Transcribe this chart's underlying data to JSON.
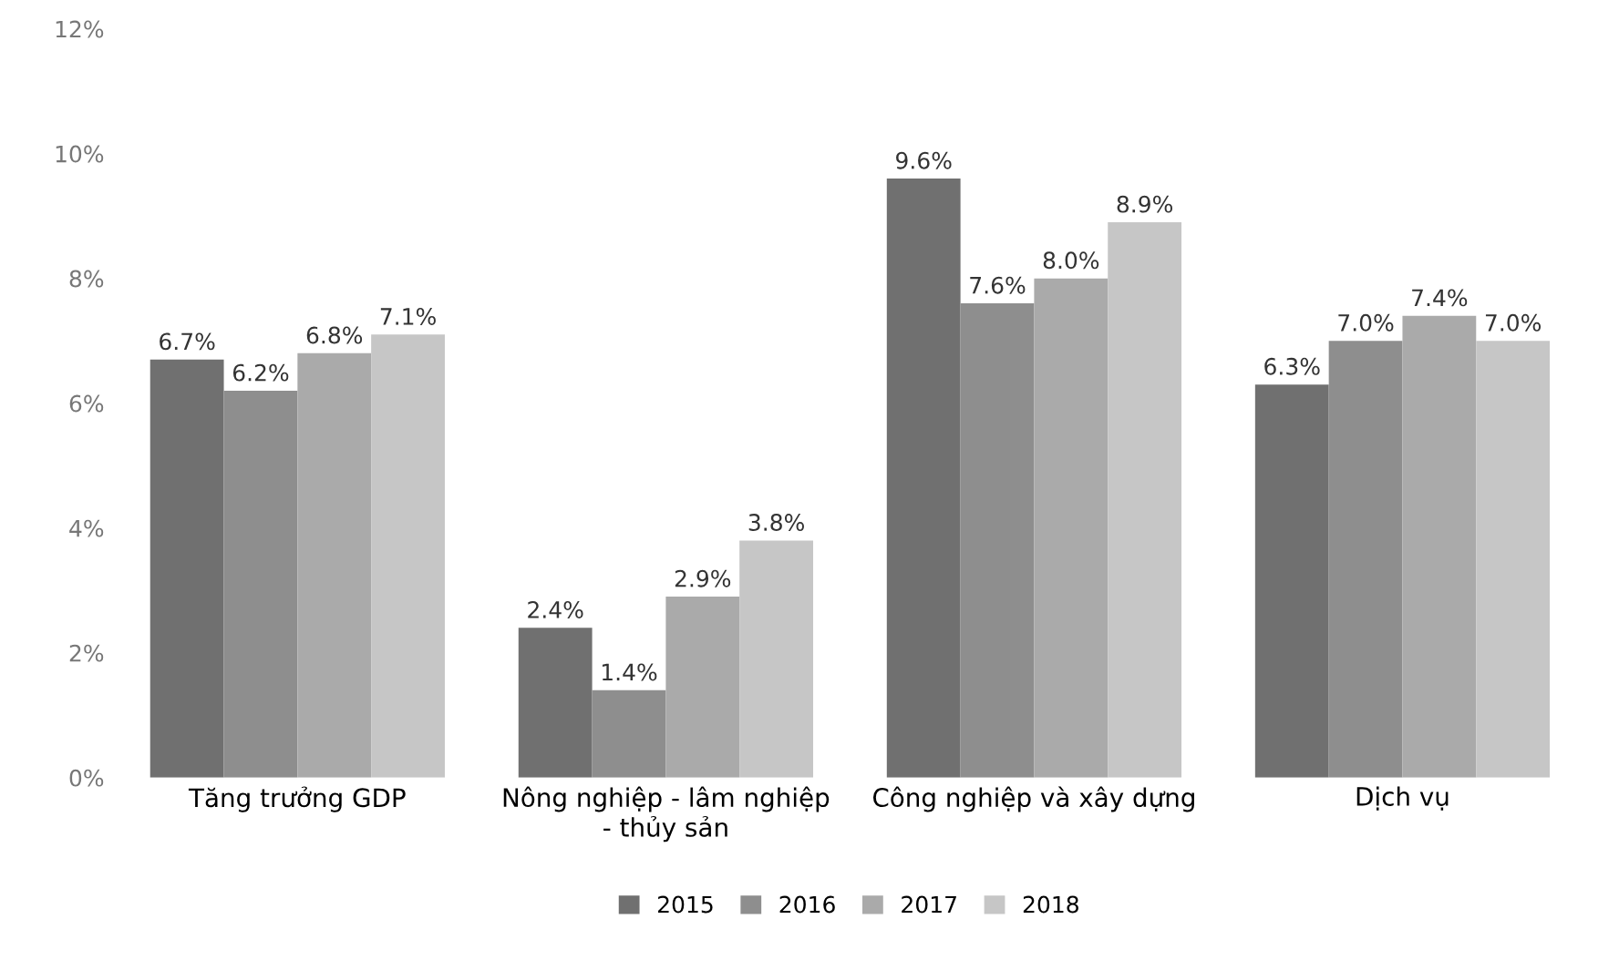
{
  "chart_data": {
    "type": "bar",
    "categories": [
      "Tăng trưởng GDP",
      "Nông nghiệp - lâm nghiệp\n- thủy sản",
      "Công nghiệp và xây dựng",
      "Dịch vụ"
    ],
    "series": [
      {
        "name": "2015",
        "color": "#707070",
        "values": [
          6.7,
          2.4,
          9.6,
          6.3
        ],
        "value_labels": [
          "6.7%",
          "2.4%",
          "9.6%",
          "6.3%"
        ]
      },
      {
        "name": "2016",
        "color": "#8e8e8e",
        "values": [
          6.2,
          1.4,
          7.6,
          7.0
        ],
        "value_labels": [
          "6.2%",
          "1.4%",
          "7.6%",
          "7.0%"
        ]
      },
      {
        "name": "2017",
        "color": "#aaaaaa",
        "values": [
          6.8,
          2.9,
          8.0,
          7.4
        ],
        "value_labels": [
          "6.8%",
          "2.9%",
          "8.0%",
          "7.4%"
        ]
      },
      {
        "name": "2018",
        "color": "#c6c6c6",
        "values": [
          7.1,
          3.8,
          8.9,
          7.0
        ],
        "value_labels": [
          "7.1%",
          "3.8%",
          "8.9%",
          "7.0%"
        ]
      }
    ],
    "ylim": [
      0,
      12
    ],
    "yticks": [
      {
        "value": 0,
        "label": "0%"
      },
      {
        "value": 2,
        "label": "2%"
      },
      {
        "value": 4,
        "label": "4%"
      },
      {
        "value": 6,
        "label": "6%"
      },
      {
        "value": 8,
        "label": "8%"
      },
      {
        "value": 10,
        "label": "10%"
      },
      {
        "value": 12,
        "label": "12%"
      }
    ],
    "grid": false,
    "legend": "bottom"
  }
}
